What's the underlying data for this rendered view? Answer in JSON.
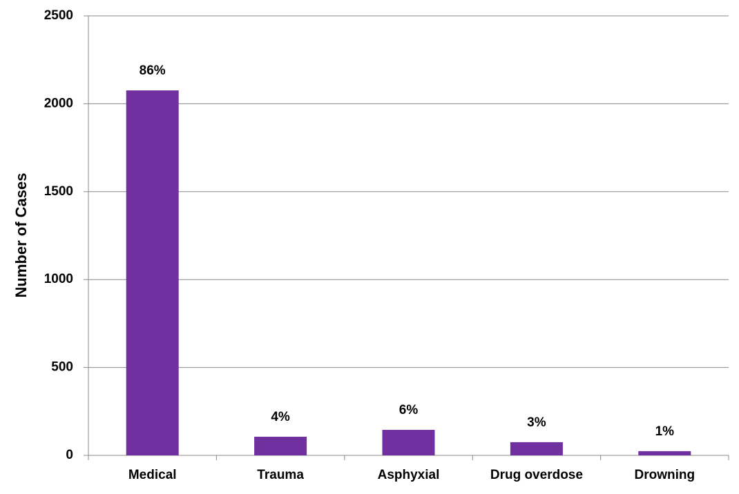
{
  "chart_data": {
    "type": "bar",
    "y_label": "Number of Cases",
    "categories": [
      "Medical",
      "Trauma",
      "Asphyxial",
      "Drug overdose",
      "Drowning"
    ],
    "values": [
      2076,
      106,
      145,
      75,
      24
    ],
    "value_labels": [
      "86%",
      "4%",
      "6%",
      "3%",
      "1%"
    ],
    "color": "#7030a0",
    "ylim": [
      0,
      2500
    ],
    "yticks": [
      0,
      500,
      1000,
      1500,
      2000,
      2500
    ],
    "grid": true
  }
}
